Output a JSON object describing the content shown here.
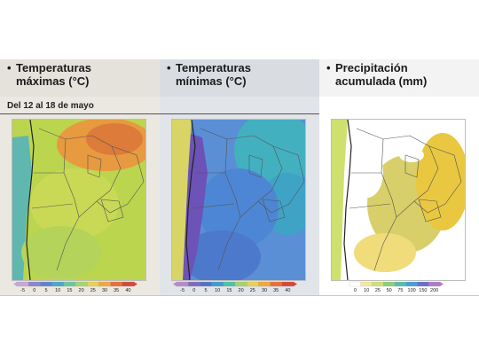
{
  "panels": [
    {
      "title_line1": "Temperaturas",
      "title_line2": "máximas (°C)",
      "scale_ticks": [
        "-5",
        "0",
        "5",
        "10",
        "15",
        "20",
        "25",
        "30",
        "35",
        "40"
      ],
      "scale_colors": [
        "#c9a7d8",
        "#8f86c8",
        "#5e84c8",
        "#4aa9c6",
        "#6cc79a",
        "#a9d36b",
        "#e9d24e",
        "#f2a740",
        "#e7703a",
        "#d34a3e"
      ]
    },
    {
      "title_line1": "Temperaturas",
      "title_line2": "mínimas (°C)",
      "scale_ticks": [
        "-5",
        "0",
        "5",
        "10",
        "15",
        "20",
        "25",
        "30",
        "35",
        "40"
      ],
      "scale_colors": [
        "#b58ac9",
        "#7a6dbd",
        "#5273c4",
        "#3f9dcc",
        "#51c2a5",
        "#a6d36a",
        "#e9d24e",
        "#f2a740",
        "#e7703a",
        "#d34a3e"
      ]
    },
    {
      "title_line1": "Precipitación",
      "title_line2": "acumulada (mm)",
      "scale_ticks": [
        "0",
        "10",
        "25",
        "50",
        "75",
        "100",
        "150",
        "200"
      ],
      "scale_colors": [
        "#ffffff",
        "#f7e79a",
        "#cfe07a",
        "#8fcf7a",
        "#54bfae",
        "#4a9fd3",
        "#6b6fc9",
        "#b07bc9"
      ]
    }
  ],
  "date_range": "Del 12 al 18 de mayo",
  "map_colors": {
    "max": {
      "base": "#bcd54e",
      "north": "#e79a3f",
      "northeast": "#dc7b3a",
      "center": "#c9d955",
      "andes": "#5fb7b0",
      "south": "#b4d35a"
    },
    "min": {
      "base": "#5a8fd6",
      "north": "#43b0c0",
      "andes": "#6d52b8",
      "center": "#4d86d4",
      "south": "#4d79cc",
      "east": "#3fa3c6"
    },
    "pre": {
      "base": "#ffffff",
      "east": "#e9c740",
      "center": "#d8cf6a",
      "patch": "#f0dc7a",
      "coast": "#cfe06f"
    }
  },
  "icons": {
    "bullet": "•"
  }
}
